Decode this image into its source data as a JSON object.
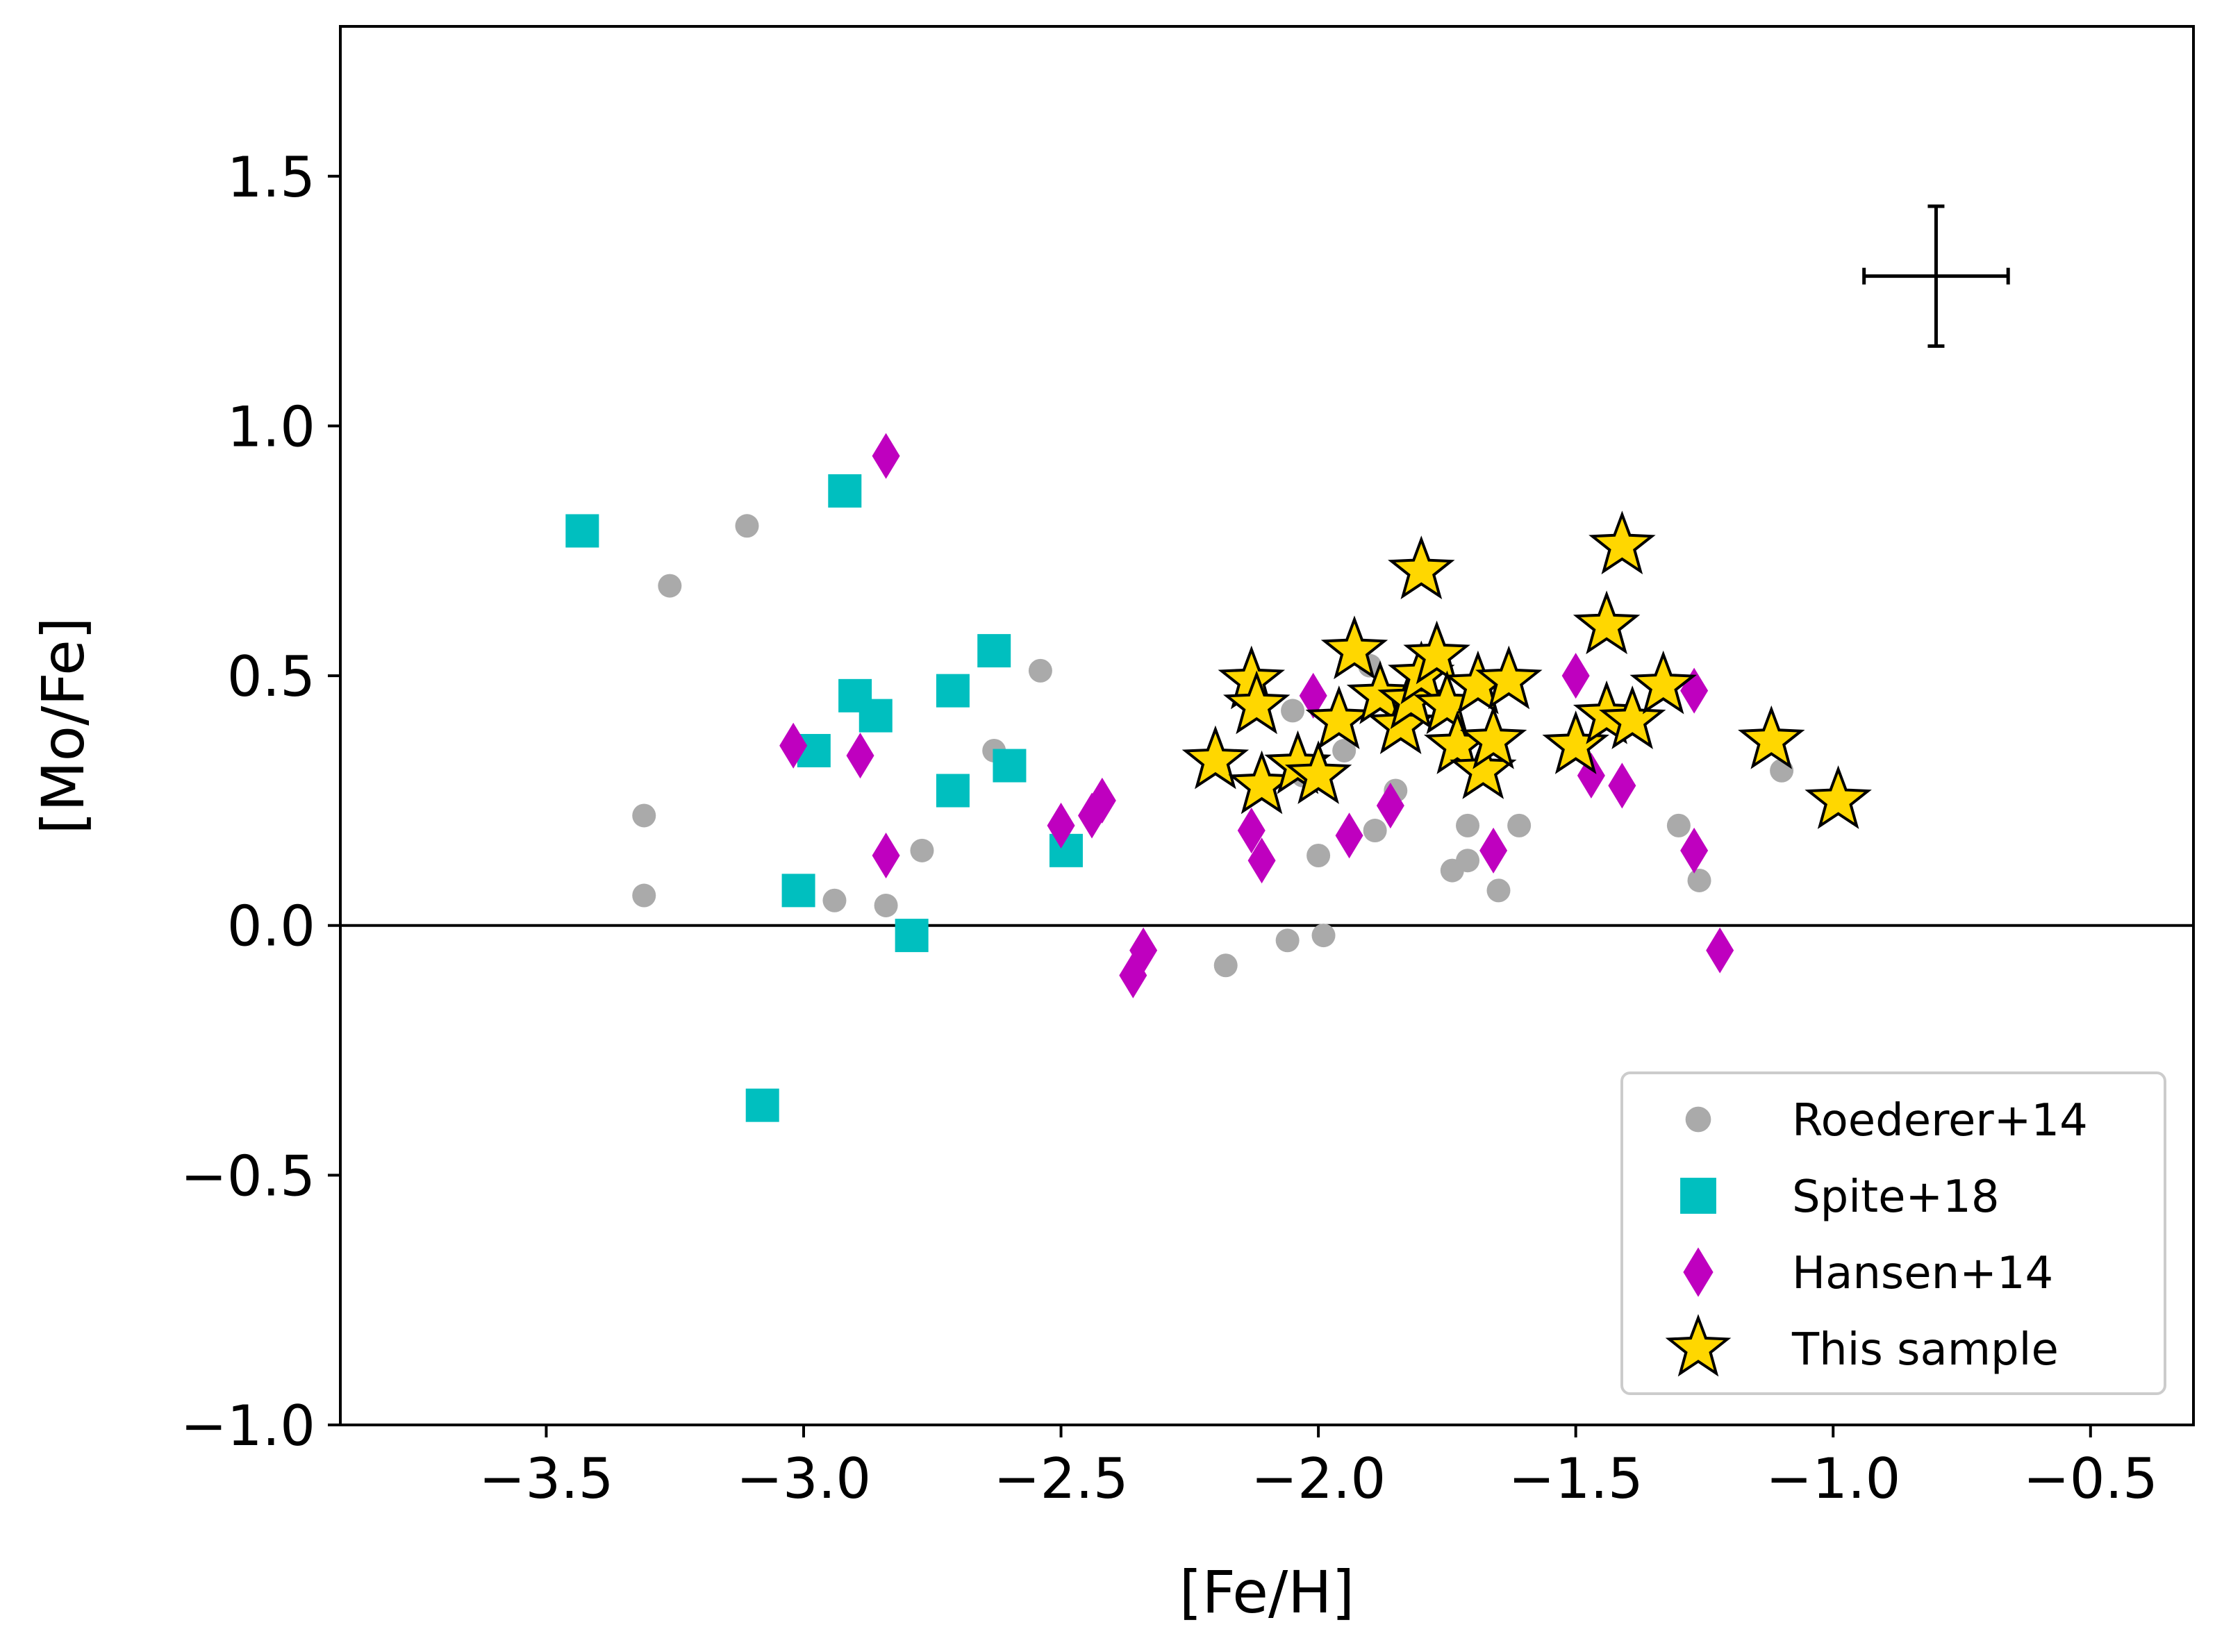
{
  "chart_data": {
    "type": "scatter",
    "xlabel": "[Fe/H]",
    "ylabel": "[Mo/Fe]",
    "xlim": [
      -3.9,
      -0.3
    ],
    "ylim": [
      -1.0,
      1.8
    ],
    "xticks": [
      -3.5,
      -3.0,
      -2.5,
      -2.0,
      -1.5,
      -1.0,
      -0.5
    ],
    "xtick_labels": [
      "−3.5",
      "−3.0",
      "−2.5",
      "−2.0",
      "−1.5",
      "−1.0",
      "−0.5"
    ],
    "yticks": [
      -1.0,
      -0.5,
      0.0,
      0.5,
      1.0,
      1.5
    ],
    "ytick_labels": [
      "−1.0",
      "−0.5",
      "0.0",
      "0.5",
      "1.0",
      "1.5"
    ],
    "reference_line_y": 0.0,
    "error_bar": {
      "x": -0.8,
      "y": 1.3,
      "xerr": 0.14,
      "yerr": 0.14
    },
    "legend_position": "lower-right",
    "colors": {
      "roederer": "#aaaaaa",
      "spite": "#00bfbf",
      "hansen": "#bf00bf",
      "sample": "#ffd700",
      "sample_edge": "#000000"
    },
    "series": [
      {
        "name": "Roederer+14",
        "marker": "circle",
        "points": [
          [
            -3.11,
            0.8
          ],
          [
            -3.26,
            0.68
          ],
          [
            -3.31,
            0.22
          ],
          [
            -3.31,
            0.06
          ],
          [
            -2.94,
            0.05
          ],
          [
            -2.84,
            0.04
          ],
          [
            -2.77,
            0.15
          ],
          [
            -2.63,
            0.35
          ],
          [
            -2.54,
            0.51
          ],
          [
            -2.18,
            -0.08
          ],
          [
            -2.06,
            -0.03
          ],
          [
            -1.99,
            -0.02
          ],
          [
            -2.0,
            0.14
          ],
          [
            -1.89,
            0.19
          ],
          [
            -1.85,
            0.27
          ],
          [
            -1.74,
            0.11
          ],
          [
            -1.71,
            0.13
          ],
          [
            -1.71,
            0.2
          ],
          [
            -1.65,
            0.07
          ],
          [
            -1.61,
            0.2
          ],
          [
            -1.3,
            0.2
          ],
          [
            -1.26,
            0.09
          ],
          [
            -1.1,
            0.31
          ],
          [
            -2.05,
            0.43
          ],
          [
            -1.9,
            0.52
          ],
          [
            -2.03,
            0.3
          ],
          [
            -1.95,
            0.35
          ]
        ]
      },
      {
        "name": "Spite+18",
        "marker": "square",
        "points": [
          [
            -3.43,
            0.79
          ],
          [
            -2.92,
            0.87
          ],
          [
            -2.9,
            0.46
          ],
          [
            -2.86,
            0.42
          ],
          [
            -2.98,
            0.35
          ],
          [
            -2.71,
            0.47
          ],
          [
            -2.63,
            0.55
          ],
          [
            -2.71,
            0.27
          ],
          [
            -2.6,
            0.32
          ],
          [
            -3.01,
            0.07
          ],
          [
            -2.79,
            -0.02
          ],
          [
            -2.49,
            0.15
          ],
          [
            -3.08,
            -0.36
          ]
        ]
      },
      {
        "name": "Hansen+14",
        "marker": "diamond",
        "points": [
          [
            -2.84,
            0.94
          ],
          [
            -3.02,
            0.36
          ],
          [
            -2.89,
            0.34
          ],
          [
            -2.84,
            0.14
          ],
          [
            -2.5,
            0.2
          ],
          [
            -2.44,
            0.22
          ],
          [
            -2.42,
            0.25
          ],
          [
            -2.34,
            -0.05
          ],
          [
            -2.36,
            -0.1
          ],
          [
            -2.13,
            0.19
          ],
          [
            -2.11,
            0.13
          ],
          [
            -2.01,
            0.46
          ],
          [
            -1.94,
            0.18
          ],
          [
            -1.86,
            0.24
          ],
          [
            -1.66,
            0.15
          ],
          [
            -1.5,
            0.5
          ],
          [
            -1.47,
            0.3
          ],
          [
            -1.41,
            0.28
          ],
          [
            -1.27,
            0.47
          ],
          [
            -1.27,
            0.15
          ],
          [
            -1.22,
            -0.05
          ]
        ]
      },
      {
        "name": "This sample",
        "marker": "star",
        "points": [
          [
            -2.2,
            0.33
          ],
          [
            -2.13,
            0.49
          ],
          [
            -2.12,
            0.44
          ],
          [
            -2.11,
            0.28
          ],
          [
            -2.04,
            0.32
          ],
          [
            -2.0,
            0.3
          ],
          [
            -1.96,
            0.41
          ],
          [
            -1.93,
            0.55
          ],
          [
            -1.88,
            0.46
          ],
          [
            -1.84,
            0.4
          ],
          [
            -1.82,
            0.45
          ],
          [
            -1.8,
            0.71
          ],
          [
            -1.8,
            0.5
          ],
          [
            -1.77,
            0.54
          ],
          [
            -1.75,
            0.44
          ],
          [
            -1.73,
            0.36
          ],
          [
            -1.69,
            0.48
          ],
          [
            -1.68,
            0.31
          ],
          [
            -1.66,
            0.37
          ],
          [
            -1.63,
            0.49
          ],
          [
            -1.5,
            0.36
          ],
          [
            -1.44,
            0.6
          ],
          [
            -1.44,
            0.42
          ],
          [
            -1.41,
            0.76
          ],
          [
            -1.39,
            0.41
          ],
          [
            -1.33,
            0.48
          ],
          [
            -1.12,
            0.37
          ],
          [
            -0.99,
            0.25
          ]
        ]
      }
    ]
  }
}
